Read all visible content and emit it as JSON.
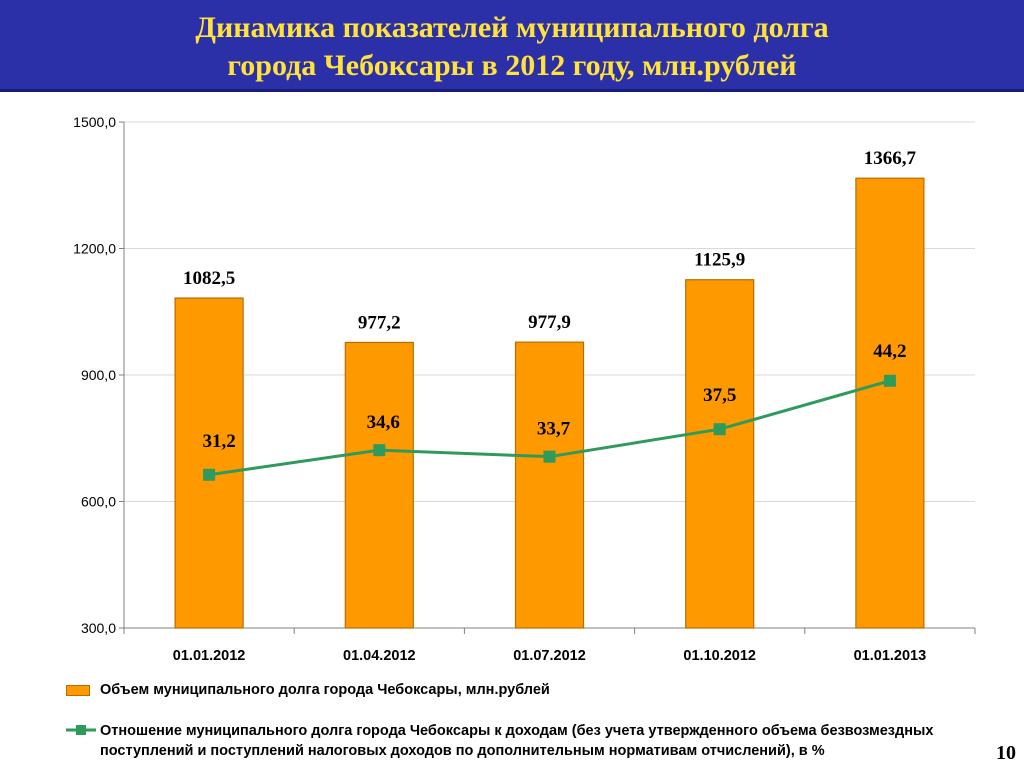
{
  "title": {
    "line1": "Динамика показателей муниципального долга",
    "line2": "города Чебоксары в 2012 году, млн.рублей"
  },
  "page_number": "10",
  "colors": {
    "banner": "#2b2fa8",
    "title_text": "#ffe23a",
    "bar_fill": "#ff9900",
    "bar_border": "#b86d00",
    "line": "#2e9a5c",
    "marker": "#2e9a5c"
  },
  "chart_data": {
    "type": "bar+line",
    "categories": [
      "01.01.2012",
      "01.04.2012",
      "01.07.2012",
      "01.10.2012",
      "01.01.2013"
    ],
    "y_tick_labels": [
      "300,0",
      "600,0",
      "900,0",
      "1200,0",
      "1500,0"
    ],
    "ylim": [
      300,
      1500
    ],
    "grid": true,
    "legend_position": "bottom",
    "series": [
      {
        "name": "Объем муниципального долга города Чебоксары, млн.рублей",
        "type": "bar",
        "values": [
          1082.5,
          977.2,
          977.9,
          1125.9,
          1366.7
        ],
        "labels": [
          "1082,5",
          "977,2",
          "977,9",
          "1125,9",
          "1366,7"
        ]
      },
      {
        "name": "Отношение муниципального долга города Чебоксары к  доходам (без учета утвержденного объема безвозмездных поступлений и поступлений налоговых доходов по дополнительным нормативам отчислений), в %",
        "type": "line",
        "values": [
          31.2,
          34.6,
          33.7,
          37.5,
          44.2
        ],
        "labels": [
          "31,2",
          "34,6",
          "33,7",
          "37,5",
          "44,2"
        ]
      }
    ]
  }
}
